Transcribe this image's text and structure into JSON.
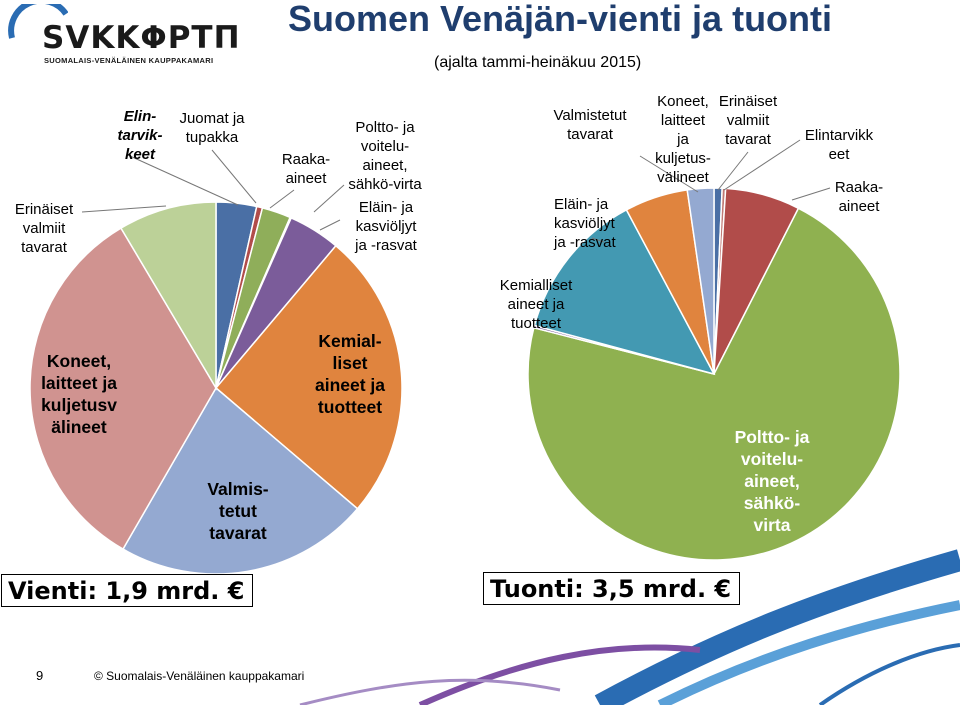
{
  "logo": {
    "text": "SVKKΦPTΠ",
    "subtitle": "SUOMALAIS-VENÄLÄINEN KAUPPAKAMARI"
  },
  "title": "Suomen Venäjän-vienti ja tuonti",
  "subtitle": "(ajalta tammi-heinäkuu 2015)",
  "colors": {
    "blue": "#4a6fa5",
    "red": "#b14c4a",
    "green": "#8fae5a",
    "purple": "#7b5c9a",
    "orange": "#e0843e",
    "lightblue": "#94a9d1",
    "pink": "#d09390",
    "lightgreen": "#bcd198",
    "teal": "#4399b2",
    "olive": "#8fb150",
    "swoosh": "#2a6cb3",
    "title": "#1f3e6e"
  },
  "chart_data": [
    {
      "type": "pie",
      "name": "Vienti",
      "total_label": "Vienti: 1,9 mrd. €",
      "slices": [
        {
          "label": "Elintarvikkeet",
          "value": 3.5,
          "color": "#4a6fa5",
          "text": [
            "Elin-",
            "tarvik-",
            "keet"
          ]
        },
        {
          "label": "Juomat ja tupakka",
          "value": 0.5,
          "color": "#b14c4a",
          "text": [
            "Juomat ja",
            "tupakka"
          ]
        },
        {
          "label": "Raaka-aineet",
          "value": 2.5,
          "color": "#8fae5a",
          "text": [
            "Raaka-",
            "aineet"
          ]
        },
        {
          "label": "Poltto- ja voiteluaineet, sähkö-virta",
          "value": 0.1,
          "color": "#e8c07a",
          "text": [
            "Poltto- ja",
            "voitelu-",
            "aineet,",
            "sähkö-virta"
          ]
        },
        {
          "label": "Eläin- ja kasviöljyt ja -rasvat",
          "value": 4.5,
          "color": "#7b5c9a",
          "text": [
            "Eläin- ja",
            "kasviöljyt",
            "ja -rasvat"
          ]
        },
        {
          "label": "Kemialliset aineet ja tuotteet",
          "value": 25,
          "color": "#e0843e",
          "text": [
            "Kemial-",
            "liset",
            "aineet ja",
            "tuotteet"
          ]
        },
        {
          "label": "Valmistetut tavarat",
          "value": 22,
          "color": "#94a9d1",
          "text": [
            "Valmis-",
            "tetut",
            "tavarat"
          ]
        },
        {
          "label": "Koneet, laitteet ja kuljetusvälineet",
          "value": 33,
          "color": "#d09390",
          "text": [
            "Koneet,",
            "laitteet ja",
            "kuljetusv",
            "älineet"
          ]
        },
        {
          "label": "Erinäiset valmiit tavarat",
          "value": 8.5,
          "color": "#bcd198",
          "text": [
            "Erinäiset",
            "valmiit",
            "tavarat"
          ]
        }
      ]
    },
    {
      "type": "pie",
      "name": "Tuonti",
      "total_label": "Tuonti: 3,5 mrd. €",
      "slices": [
        {
          "label": "Erinäiset valmiit tavarat",
          "value": 0.7,
          "color": "#4a6fa5",
          "text": [
            "Erinäiset",
            "valmiit",
            "tavarat"
          ]
        },
        {
          "label": "Elintarvikkeet",
          "value": 0.3,
          "color": "#c07a76",
          "text": [
            "Elintarvikk",
            "eet"
          ]
        },
        {
          "label": "Raaka-aineet",
          "value": 6.5,
          "color": "#b14c4a",
          "text": [
            "Raaka-",
            "aineet"
          ]
        },
        {
          "label": "Poltto- ja voiteluaineet, sähkövirta",
          "value": 71.5,
          "color": "#8fb150",
          "text": [
            "Poltto- ja",
            "voitelu-",
            "aineet,",
            "sähkö-",
            "virta"
          ]
        },
        {
          "label": "Eläin- ja kasviöljyt ja -rasvat",
          "value": 0.2,
          "color": "#7b5c9a",
          "text": [
            "Eläin- ja",
            "kasviöljyt",
            "ja -rasvat"
          ]
        },
        {
          "label": "Kemialliset aineet ja tuotteet",
          "value": 13,
          "color": "#4399b2",
          "text": [
            "Kemialliset",
            "aineet ja",
            "tuotteet"
          ]
        },
        {
          "label": "Valmistetut tavarat",
          "value": 5.5,
          "color": "#e0843e",
          "text": [
            "Valmistetut",
            "tavarat"
          ]
        },
        {
          "label": "Koneet, laitteet ja kuljetusvälineet",
          "value": 2.3,
          "color": "#94a9d1",
          "text": [
            "Koneet,",
            "laitteet",
            "ja",
            "kuljetus-",
            "välineet"
          ]
        }
      ]
    }
  ],
  "footer": {
    "page": "9",
    "copyright": "© Suomalais-Venäläinen kauppakamari"
  }
}
